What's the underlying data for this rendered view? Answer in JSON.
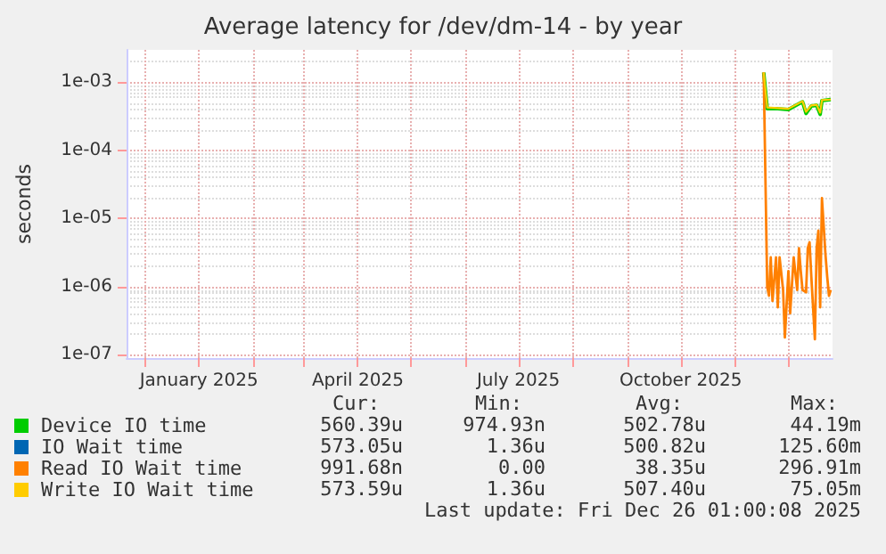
{
  "chart_data": {
    "type": "line",
    "title": "Average latency for /dev/dm-14 - by year",
    "ylabel": "seconds",
    "log": "y",
    "grid": true,
    "legend": "bottom",
    "xlim": [
      "2024-11-21",
      "2025-12-26"
    ],
    "xticks": [
      {
        "value": "2024-12-01",
        "label": null
      },
      {
        "value": "2025-01-01",
        "label": "January 2025"
      },
      {
        "value": "2025-02-01",
        "label": null
      },
      {
        "value": "2025-03-01",
        "label": null
      },
      {
        "value": "2025-04-01",
        "label": "April 2025"
      },
      {
        "value": "2025-05-01",
        "label": null
      },
      {
        "value": "2025-06-01",
        "label": null
      },
      {
        "value": "2025-07-01",
        "label": "July 2025"
      },
      {
        "value": "2025-08-01",
        "label": null
      },
      {
        "value": "2025-09-01",
        "label": null
      },
      {
        "value": "2025-10-01",
        "label": "October 2025"
      },
      {
        "value": "2025-11-01",
        "label": null
      },
      {
        "value": "2025-12-01",
        "label": null
      }
    ],
    "ylim": [
      9e-08,
      0.003
    ],
    "yticks": [
      {
        "value": 1e-07,
        "label": "1e-07"
      },
      {
        "value": 1e-06,
        "label": "1e-06"
      },
      {
        "value": 1e-05,
        "label": "1e-05"
      },
      {
        "value": 0.0001,
        "label": "1e-04"
      },
      {
        "value": 0.001,
        "label": "1e-03"
      }
    ],
    "series": [
      {
        "name": "Device IO time",
        "color": "#00cc00",
        "x": [
          "2025-11-17",
          "2025-11-19",
          "2025-11-25",
          "2025-12-01",
          "2025-12-06",
          "2025-12-09",
          "2025-12-11",
          "2025-12-14",
          "2025-12-17",
          "2025-12-19",
          "2025-12-20",
          "2025-12-25"
        ],
        "values": [
          0.0014,
          0.00041,
          0.00041,
          0.0004,
          0.00047,
          0.00052,
          0.00035,
          0.00045,
          0.00046,
          0.00034,
          0.00054,
          0.00056
        ]
      },
      {
        "name": "IO Wait time",
        "color": "#0066b3"
      },
      {
        "name": "Read IO Wait time",
        "color": "#ff8000",
        "x": [
          "2025-11-17",
          "2025-11-19",
          "2025-11-20",
          "2025-11-21",
          "2025-11-22",
          "2025-11-24",
          "2025-11-25",
          "2025-11-26",
          "2025-11-28",
          "2025-11-29",
          "2025-12-01",
          "2025-12-02",
          "2025-12-04",
          "2025-12-06",
          "2025-12-07",
          "2025-12-08",
          "2025-12-09",
          "2025-12-11",
          "2025-12-12",
          "2025-12-13",
          "2025-12-14",
          "2025-12-16",
          "2025-12-17",
          "2025-12-18",
          "2025-12-19",
          "2025-12-20",
          "2025-12-22",
          "2025-12-23",
          "2025-12-24",
          "2025-12-25"
        ],
        "values": [
          0.0014,
          1e-06,
          7.4e-07,
          2.7e-06,
          6.2e-07,
          2.7e-06,
          5e-07,
          2.7e-06,
          9e-07,
          1.8e-07,
          1.7e-06,
          4.1e-07,
          2.7e-06,
          9e-07,
          3.7e-06,
          1.7e-06,
          9e-07,
          8.3e-07,
          3.7e-06,
          4.5e-06,
          1.4e-06,
          1.7e-07,
          3.7e-06,
          6.7e-06,
          5e-07,
          2e-05,
          3e-06,
          1.4e-06,
          7.4e-07,
          9e-07
        ]
      },
      {
        "name": "Write IO Wait time",
        "color": "#ffcc00",
        "x": [
          "2025-11-17",
          "2025-11-19",
          "2025-11-25",
          "2025-12-01",
          "2025-12-06",
          "2025-12-09",
          "2025-12-11",
          "2025-12-14",
          "2025-12-17",
          "2025-12-19",
          "2025-12-20",
          "2025-12-25"
        ],
        "values": [
          0.0014,
          0.00043,
          0.00042,
          0.00041,
          0.00048,
          0.00053,
          0.00037,
          0.00046,
          0.00047,
          0.00036,
          0.00055,
          0.00056
        ]
      }
    ],
    "annotations": [
      "Cur:",
      "Min:",
      "Avg:",
      "Max:",
      "560.39u",
      "974.93n",
      "502.78u",
      "44.19m",
      "573.05u",
      "1.36u",
      "500.82u",
      "125.60m",
      "991.68n",
      "0.00",
      "38.35u",
      "296.91m",
      "573.59u",
      "1.36u",
      "507.40u",
      "75.05m",
      "Last update: Fri Dec 26 01:00:08 2025"
    ]
  }
}
